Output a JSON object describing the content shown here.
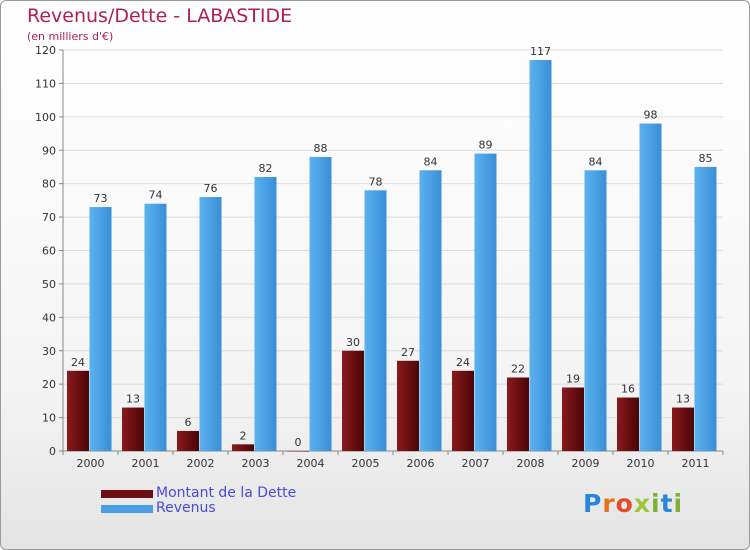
{
  "header": {
    "title": "Revenus/Dette - LABASTIDE",
    "subtitle": "(en milliers d'€)"
  },
  "legend": {
    "items": [
      {
        "label": "Montant de la Dette",
        "color": "#6b0f12"
      },
      {
        "label": "Revenus",
        "color": "#4a9fe3"
      }
    ]
  },
  "logo": {
    "text": "Proxiti"
  },
  "colors": {
    "title": "#b0204e",
    "debt": "#6b0f12",
    "revenue": "#4a9fe3",
    "grid": "#dcdcdc"
  },
  "chart_data": {
    "type": "bar",
    "categories": [
      "2000",
      "2001",
      "2002",
      "2003",
      "2004",
      "2005",
      "2006",
      "2007",
      "2008",
      "2009",
      "2010",
      "2011"
    ],
    "series": [
      {
        "name": "Montant de la Dette",
        "values": [
          24,
          13,
          6,
          2,
          0,
          30,
          27,
          24,
          22,
          19,
          16,
          13
        ]
      },
      {
        "name": "Revenus",
        "values": [
          73,
          74,
          76,
          82,
          88,
          78,
          84,
          89,
          117,
          84,
          98,
          85
        ]
      }
    ],
    "title": "Revenus/Dette - LABASTIDE",
    "subtitle": "(en milliers d'€)",
    "ylim": [
      0,
      120
    ],
    "yticks": [
      0,
      10,
      20,
      30,
      40,
      50,
      60,
      70,
      80,
      90,
      100,
      110,
      120
    ],
    "grid": true,
    "legend_position": "bottom-left"
  }
}
